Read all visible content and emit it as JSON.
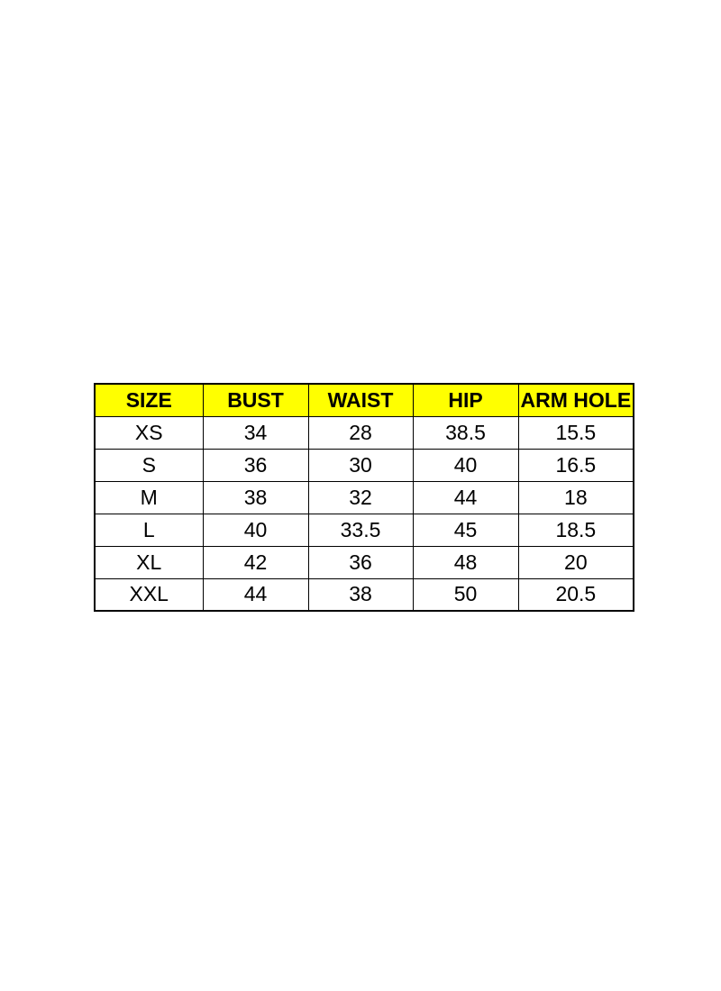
{
  "page": {
    "background_color": "#ffffff"
  },
  "table": {
    "header_bg_color": "#ffff00",
    "border_color": "#000000",
    "text_color": "#000000",
    "columns": [
      "SIZE",
      "BUST",
      "WAIST",
      "HIP",
      "ARM HOLE"
    ],
    "rows": [
      [
        "XS",
        "34",
        "28",
        "38.5",
        "15.5"
      ],
      [
        "S",
        "36",
        "30",
        "40",
        "16.5"
      ],
      [
        "M",
        "38",
        "32",
        "44",
        "18"
      ],
      [
        "L",
        "40",
        "33.5",
        "45",
        "18.5"
      ],
      [
        "XL",
        "42",
        "36",
        "48",
        "20"
      ],
      [
        "XXL",
        "44",
        "38",
        "50",
        "20.5"
      ]
    ]
  },
  "chart_data": {
    "type": "table",
    "columns": [
      "SIZE",
      "BUST",
      "WAIST",
      "HIP",
      "ARM HOLE"
    ],
    "rows": [
      {
        "SIZE": "XS",
        "BUST": 34,
        "WAIST": 28,
        "HIP": 38.5,
        "ARM HOLE": 15.5
      },
      {
        "SIZE": "S",
        "BUST": 36,
        "WAIST": 30,
        "HIP": 40,
        "ARM HOLE": 16.5
      },
      {
        "SIZE": "M",
        "BUST": 38,
        "WAIST": 32,
        "HIP": 44,
        "ARM HOLE": 18
      },
      {
        "SIZE": "L",
        "BUST": 40,
        "WAIST": 33.5,
        "HIP": 45,
        "ARM HOLE": 18.5
      },
      {
        "SIZE": "XL",
        "BUST": 42,
        "WAIST": 36,
        "HIP": 48,
        "ARM HOLE": 20
      },
      {
        "SIZE": "XXL",
        "BUST": 44,
        "WAIST": 38,
        "HIP": 50,
        "ARM HOLE": 20.5
      }
    ],
    "layout_hints": {
      "header_background": "#ffff00",
      "grid": true,
      "alignment": "center"
    }
  }
}
